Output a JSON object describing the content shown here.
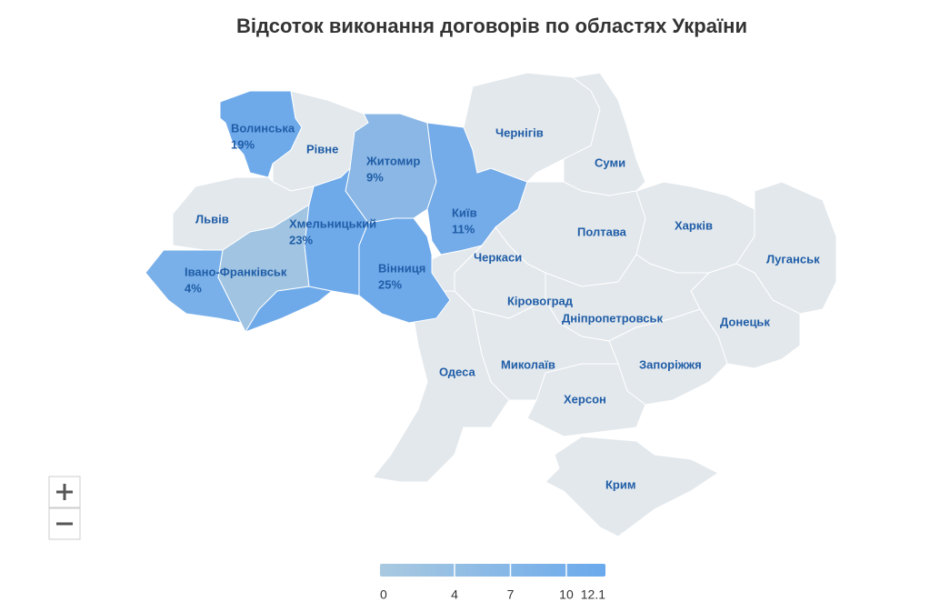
{
  "chart_data": {
    "type": "choropleth",
    "title": "Відсоток виконання договорів по областях України",
    "default_color": "#e3e8ec",
    "regions": [
      {
        "name": "Волинська",
        "value": 19,
        "value_label": "19%",
        "color": "#6eaaea"
      },
      {
        "name": "Рівне"
      },
      {
        "name": "Житомир",
        "value": 9,
        "value_label": "9%",
        "color": "#8ab7e5"
      },
      {
        "name": "Київ",
        "value": 11,
        "value_label": "11%",
        "color": "#74abe9"
      },
      {
        "name": "Чернігів"
      },
      {
        "name": "Суми"
      },
      {
        "name": "Полтава"
      },
      {
        "name": "Харків"
      },
      {
        "name": "Луганськ"
      },
      {
        "name": "Донецьк"
      },
      {
        "name": "Дніпропетровськ"
      },
      {
        "name": "Запоріжжя"
      },
      {
        "name": "Херсон"
      },
      {
        "name": "Крим"
      },
      {
        "name": "Миколаїв"
      },
      {
        "name": "Кіровоград"
      },
      {
        "name": "Черкаси"
      },
      {
        "name": "Одеса"
      },
      {
        "name": "Вінниця",
        "value": 25,
        "value_label": "25%",
        "color": "#6ea9ea"
      },
      {
        "name": "Хмельницький",
        "value": 23,
        "value_label": "23%",
        "color": "#6ea9ea"
      },
      {
        "name": "Львів"
      },
      {
        "name": "Івано-Франківськ",
        "value": 4,
        "value_label": "4%",
        "color": "#79b0e9"
      }
    ],
    "colorscale": {
      "range": [
        0,
        12.1
      ],
      "ticks": [
        0,
        4,
        7,
        10,
        12.1
      ],
      "colors": [
        "#a9c9e0",
        "#6aa9ec"
      ]
    }
  }
}
